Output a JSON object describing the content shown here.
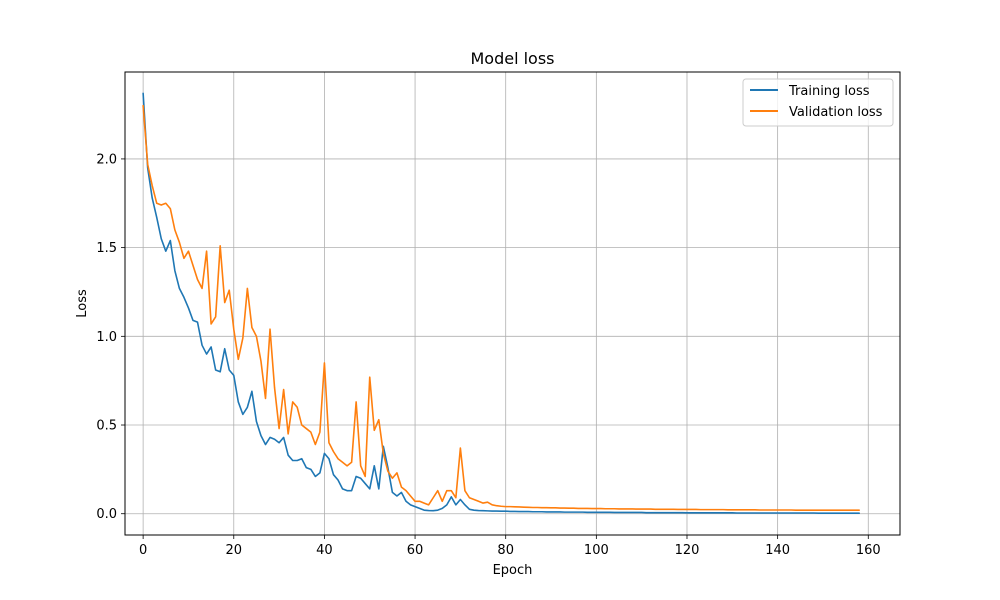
{
  "chart_data": {
    "type": "line",
    "title": "Model loss",
    "xlabel": "Epoch",
    "ylabel": "Loss",
    "xlim": [
      -4,
      167
    ],
    "ylim": [
      -0.12,
      2.49
    ],
    "xticks": [
      0,
      20,
      40,
      60,
      80,
      100,
      120,
      140,
      160
    ],
    "xtick_labels": [
      "0",
      "20",
      "40",
      "60",
      "80",
      "100",
      "120",
      "140",
      "160"
    ],
    "yticks": [
      0.0,
      0.5,
      1.0,
      1.5,
      2.0
    ],
    "ytick_labels": [
      "0.0",
      "0.5",
      "1.0",
      "1.5",
      "2.0"
    ],
    "grid": true,
    "legend_position": "upper right",
    "series": [
      {
        "name": "Training loss",
        "color": "#1f77b4",
        "values": [
          2.37,
          1.95,
          1.78,
          1.67,
          1.55,
          1.48,
          1.54,
          1.37,
          1.27,
          1.22,
          1.16,
          1.09,
          1.08,
          0.95,
          0.9,
          0.94,
          0.81,
          0.8,
          0.93,
          0.81,
          0.78,
          0.63,
          0.56,
          0.6,
          0.69,
          0.52,
          0.44,
          0.39,
          0.43,
          0.42,
          0.4,
          0.43,
          0.33,
          0.3,
          0.3,
          0.31,
          0.26,
          0.25,
          0.21,
          0.23,
          0.34,
          0.31,
          0.22,
          0.19,
          0.14,
          0.13,
          0.13,
          0.21,
          0.2,
          0.17,
          0.14,
          0.27,
          0.14,
          0.38,
          0.26,
          0.12,
          0.1,
          0.12,
          0.07,
          0.05,
          0.04,
          0.03,
          0.02,
          0.018,
          0.017,
          0.02,
          0.03,
          0.05,
          0.095,
          0.05,
          0.08,
          0.05,
          0.025,
          0.02,
          0.018,
          0.017,
          0.016,
          0.015,
          0.015,
          0.014,
          0.014,
          0.013,
          0.013,
          0.012,
          0.012,
          0.012,
          0.011,
          0.011,
          0.011,
          0.01,
          0.01,
          0.01,
          0.01,
          0.009,
          0.009,
          0.009,
          0.009,
          0.009,
          0.008,
          0.008,
          0.008,
          0.008,
          0.008,
          0.008,
          0.007,
          0.007,
          0.007,
          0.007,
          0.007,
          0.007,
          0.007,
          0.006,
          0.006,
          0.006,
          0.006,
          0.006,
          0.006,
          0.006,
          0.006,
          0.006,
          0.005,
          0.005,
          0.005,
          0.005,
          0.005,
          0.005,
          0.005,
          0.005,
          0.005,
          0.005,
          0.005,
          0.004,
          0.004,
          0.004,
          0.004,
          0.004,
          0.004,
          0.004,
          0.004,
          0.004,
          0.004,
          0.004,
          0.004,
          0.004,
          0.004,
          0.004,
          0.004,
          0.004,
          0.004,
          0.003,
          0.003,
          0.003,
          0.003,
          0.003,
          0.003,
          0.003,
          0.003,
          0.003,
          0.003
        ]
      },
      {
        "name": "Validation loss",
        "color": "#ff7f0e",
        "values": [
          2.3,
          1.97,
          1.85,
          1.75,
          1.74,
          1.75,
          1.72,
          1.6,
          1.53,
          1.44,
          1.48,
          1.4,
          1.32,
          1.27,
          1.48,
          1.07,
          1.11,
          1.51,
          1.19,
          1.26,
          1.04,
          0.87,
          0.99,
          1.27,
          1.05,
          1.0,
          0.86,
          0.65,
          1.04,
          0.71,
          0.48,
          0.7,
          0.45,
          0.63,
          0.6,
          0.5,
          0.48,
          0.46,
          0.39,
          0.46,
          0.85,
          0.4,
          0.35,
          0.31,
          0.29,
          0.27,
          0.29,
          0.63,
          0.27,
          0.21,
          0.77,
          0.47,
          0.53,
          0.34,
          0.24,
          0.2,
          0.23,
          0.15,
          0.13,
          0.1,
          0.07,
          0.07,
          0.06,
          0.05,
          0.09,
          0.13,
          0.07,
          0.13,
          0.13,
          0.09,
          0.37,
          0.13,
          0.09,
          0.08,
          0.07,
          0.06,
          0.065,
          0.05,
          0.045,
          0.042,
          0.04,
          0.04,
          0.039,
          0.038,
          0.037,
          0.036,
          0.035,
          0.035,
          0.034,
          0.034,
          0.033,
          0.033,
          0.032,
          0.032,
          0.031,
          0.031,
          0.03,
          0.03,
          0.03,
          0.029,
          0.029,
          0.029,
          0.028,
          0.028,
          0.028,
          0.027,
          0.027,
          0.027,
          0.027,
          0.026,
          0.026,
          0.026,
          0.026,
          0.025,
          0.025,
          0.025,
          0.025,
          0.025,
          0.024,
          0.024,
          0.024,
          0.024,
          0.024,
          0.023,
          0.023,
          0.023,
          0.023,
          0.023,
          0.023,
          0.022,
          0.022,
          0.022,
          0.022,
          0.022,
          0.022,
          0.022,
          0.021,
          0.021,
          0.021,
          0.021,
          0.021,
          0.021,
          0.021,
          0.021,
          0.02,
          0.02,
          0.02,
          0.02,
          0.02,
          0.02,
          0.02,
          0.02,
          0.02,
          0.02,
          0.02,
          0.02,
          0.02,
          0.02,
          0.02
        ]
      }
    ]
  }
}
